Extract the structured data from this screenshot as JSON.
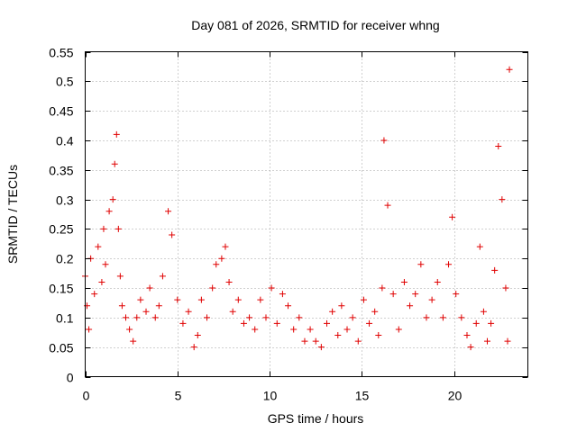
{
  "chart_data": {
    "type": "scatter",
    "title": "Day 081 of 2026, SRMTID for receiver whng",
    "xlabel": "GPS time / hours",
    "ylabel": "SRMTID / TECUs",
    "xlim": [
      0,
      24
    ],
    "ylim": [
      0,
      0.55
    ],
    "xticks": [
      0,
      5,
      10,
      15,
      20
    ],
    "xtick_labels": [
      "0",
      "5",
      "10",
      "15",
      "20"
    ],
    "yticks": [
      0,
      0.05,
      0.1,
      0.15,
      0.2,
      0.25,
      0.3,
      0.35,
      0.4,
      0.45,
      0.5,
      0.55
    ],
    "ytick_labels": [
      "0",
      "0.05",
      "0.1",
      "0.15",
      "0.2",
      "0.25",
      "0.3",
      "0.35",
      "0.4",
      "0.45",
      "0.5",
      "0.55"
    ],
    "grid": true,
    "marker": "+",
    "color": "#e00000",
    "series": [
      {
        "name": "SRMTID",
        "x": [
          0.0,
          0.1,
          0.2,
          0.3,
          0.5,
          0.7,
          0.9,
          1.0,
          1.1,
          1.3,
          1.5,
          1.6,
          1.7,
          1.8,
          1.9,
          2.0,
          2.2,
          2.4,
          2.6,
          2.8,
          3.0,
          3.3,
          3.5,
          3.8,
          4.0,
          4.2,
          4.5,
          4.7,
          5.0,
          5.3,
          5.6,
          5.9,
          6.1,
          6.3,
          6.6,
          6.9,
          7.1,
          7.4,
          7.6,
          7.8,
          8.0,
          8.3,
          8.6,
          8.9,
          9.2,
          9.5,
          9.8,
          10.1,
          10.4,
          10.7,
          11.0,
          11.3,
          11.6,
          11.9,
          12.2,
          12.5,
          12.8,
          13.1,
          13.4,
          13.7,
          13.9,
          14.2,
          14.5,
          14.8,
          15.1,
          15.4,
          15.7,
          15.9,
          16.1,
          16.2,
          16.4,
          16.7,
          17.0,
          17.3,
          17.6,
          17.9,
          18.2,
          18.5,
          18.8,
          19.1,
          19.4,
          19.7,
          19.9,
          20.1,
          20.4,
          20.7,
          20.9,
          21.2,
          21.4,
          21.6,
          21.8,
          22.0,
          22.2,
          22.4,
          22.6,
          22.8,
          22.9,
          23.0
        ],
        "y": [
          0.17,
          0.12,
          0.08,
          0.2,
          0.14,
          0.22,
          0.16,
          0.25,
          0.19,
          0.28,
          0.3,
          0.36,
          0.41,
          0.25,
          0.17,
          0.12,
          0.1,
          0.08,
          0.06,
          0.1,
          0.13,
          0.11,
          0.15,
          0.1,
          0.12,
          0.17,
          0.28,
          0.24,
          0.13,
          0.09,
          0.11,
          0.05,
          0.07,
          0.13,
          0.1,
          0.15,
          0.19,
          0.2,
          0.22,
          0.16,
          0.11,
          0.13,
          0.09,
          0.1,
          0.08,
          0.13,
          0.1,
          0.15,
          0.09,
          0.14,
          0.12,
          0.08,
          0.1,
          0.06,
          0.08,
          0.06,
          0.05,
          0.09,
          0.11,
          0.07,
          0.12,
          0.08,
          0.1,
          0.06,
          0.13,
          0.09,
          0.11,
          0.07,
          0.15,
          0.4,
          0.29,
          0.14,
          0.08,
          0.16,
          0.12,
          0.14,
          0.19,
          0.1,
          0.13,
          0.16,
          0.1,
          0.19,
          0.27,
          0.14,
          0.1,
          0.07,
          0.05,
          0.09,
          0.22,
          0.11,
          0.06,
          0.09,
          0.18,
          0.39,
          0.3,
          0.15,
          0.06,
          0.52
        ]
      }
    ]
  }
}
